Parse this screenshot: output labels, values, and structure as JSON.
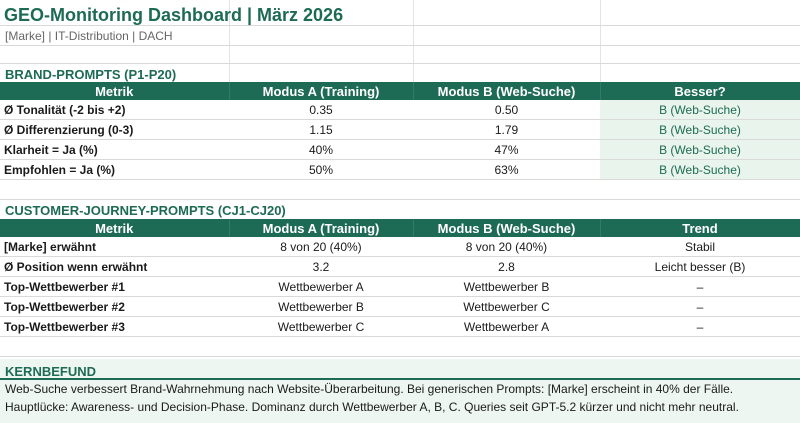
{
  "header": {
    "title": "GEO-Monitoring Dashboard | März 2026",
    "subtitle": "[Marke] | IT-Distribution | DACH"
  },
  "brand": {
    "section_title": "BRAND-PROMPTS (P1-P20)",
    "columns": [
      "Metrik",
      "Modus A (Training)",
      "Modus B (Web-Suche)",
      "Besser?"
    ],
    "rows": [
      {
        "metric": "Ø Tonalität (-2 bis +2)",
        "a": "0.35",
        "b": "0.50",
        "result": "B (Web-Suche)"
      },
      {
        "metric": "Ø Differenzierung (0-3)",
        "a": "1.15",
        "b": "1.79",
        "result": "B (Web-Suche)"
      },
      {
        "metric": "Klarheit = Ja (%)",
        "a": "40%",
        "b": "47%",
        "result": "B (Web-Suche)"
      },
      {
        "metric": "Empfohlen = Ja (%)",
        "a": "50%",
        "b": "63%",
        "result": "B (Web-Suche)"
      }
    ]
  },
  "journey": {
    "section_title": "CUSTOMER-JOURNEY-PROMPTS (CJ1-CJ20)",
    "columns": [
      "Metrik",
      "Modus A (Training)",
      "Modus B (Web-Suche)",
      "Trend"
    ],
    "rows": [
      {
        "metric": "[Marke] erwähnt",
        "a": "8 von 20 (40%)",
        "b": "8 von 20 (40%)",
        "result": "Stabil"
      },
      {
        "metric": "Ø Position wenn erwähnt",
        "a": "3.2",
        "b": "2.8",
        "result": "Leicht besser (B)"
      },
      {
        "metric": "Top-Wettbewerber #1",
        "a": "Wettbewerber A",
        "b": "Wettbewerber B",
        "result": "–"
      },
      {
        "metric": "Top-Wettbewerber #2",
        "a": "Wettbewerber B",
        "b": "Wettbewerber C",
        "result": "–"
      },
      {
        "metric": "Top-Wettbewerber #3",
        "a": "Wettbewerber C",
        "b": "Wettbewerber A",
        "result": "–"
      }
    ]
  },
  "kernbefund": {
    "title": "KERNBEFUND",
    "line1": "Web-Suche verbessert Brand-Wahrnehmung nach Website-Überarbeitung. Bei generischen Prompts: [Marke] erscheint in 40% der Fälle.",
    "line2": "Hauptlücke: Awareness- und Decision-Phase. Dominanz durch Wettbewerber A, B, C. Queries seit GPT-5.2 kürzer und nicht mehr neutral."
  },
  "colors": {
    "accent": "#1e6b55",
    "highlight": "#e8f4ec"
  }
}
